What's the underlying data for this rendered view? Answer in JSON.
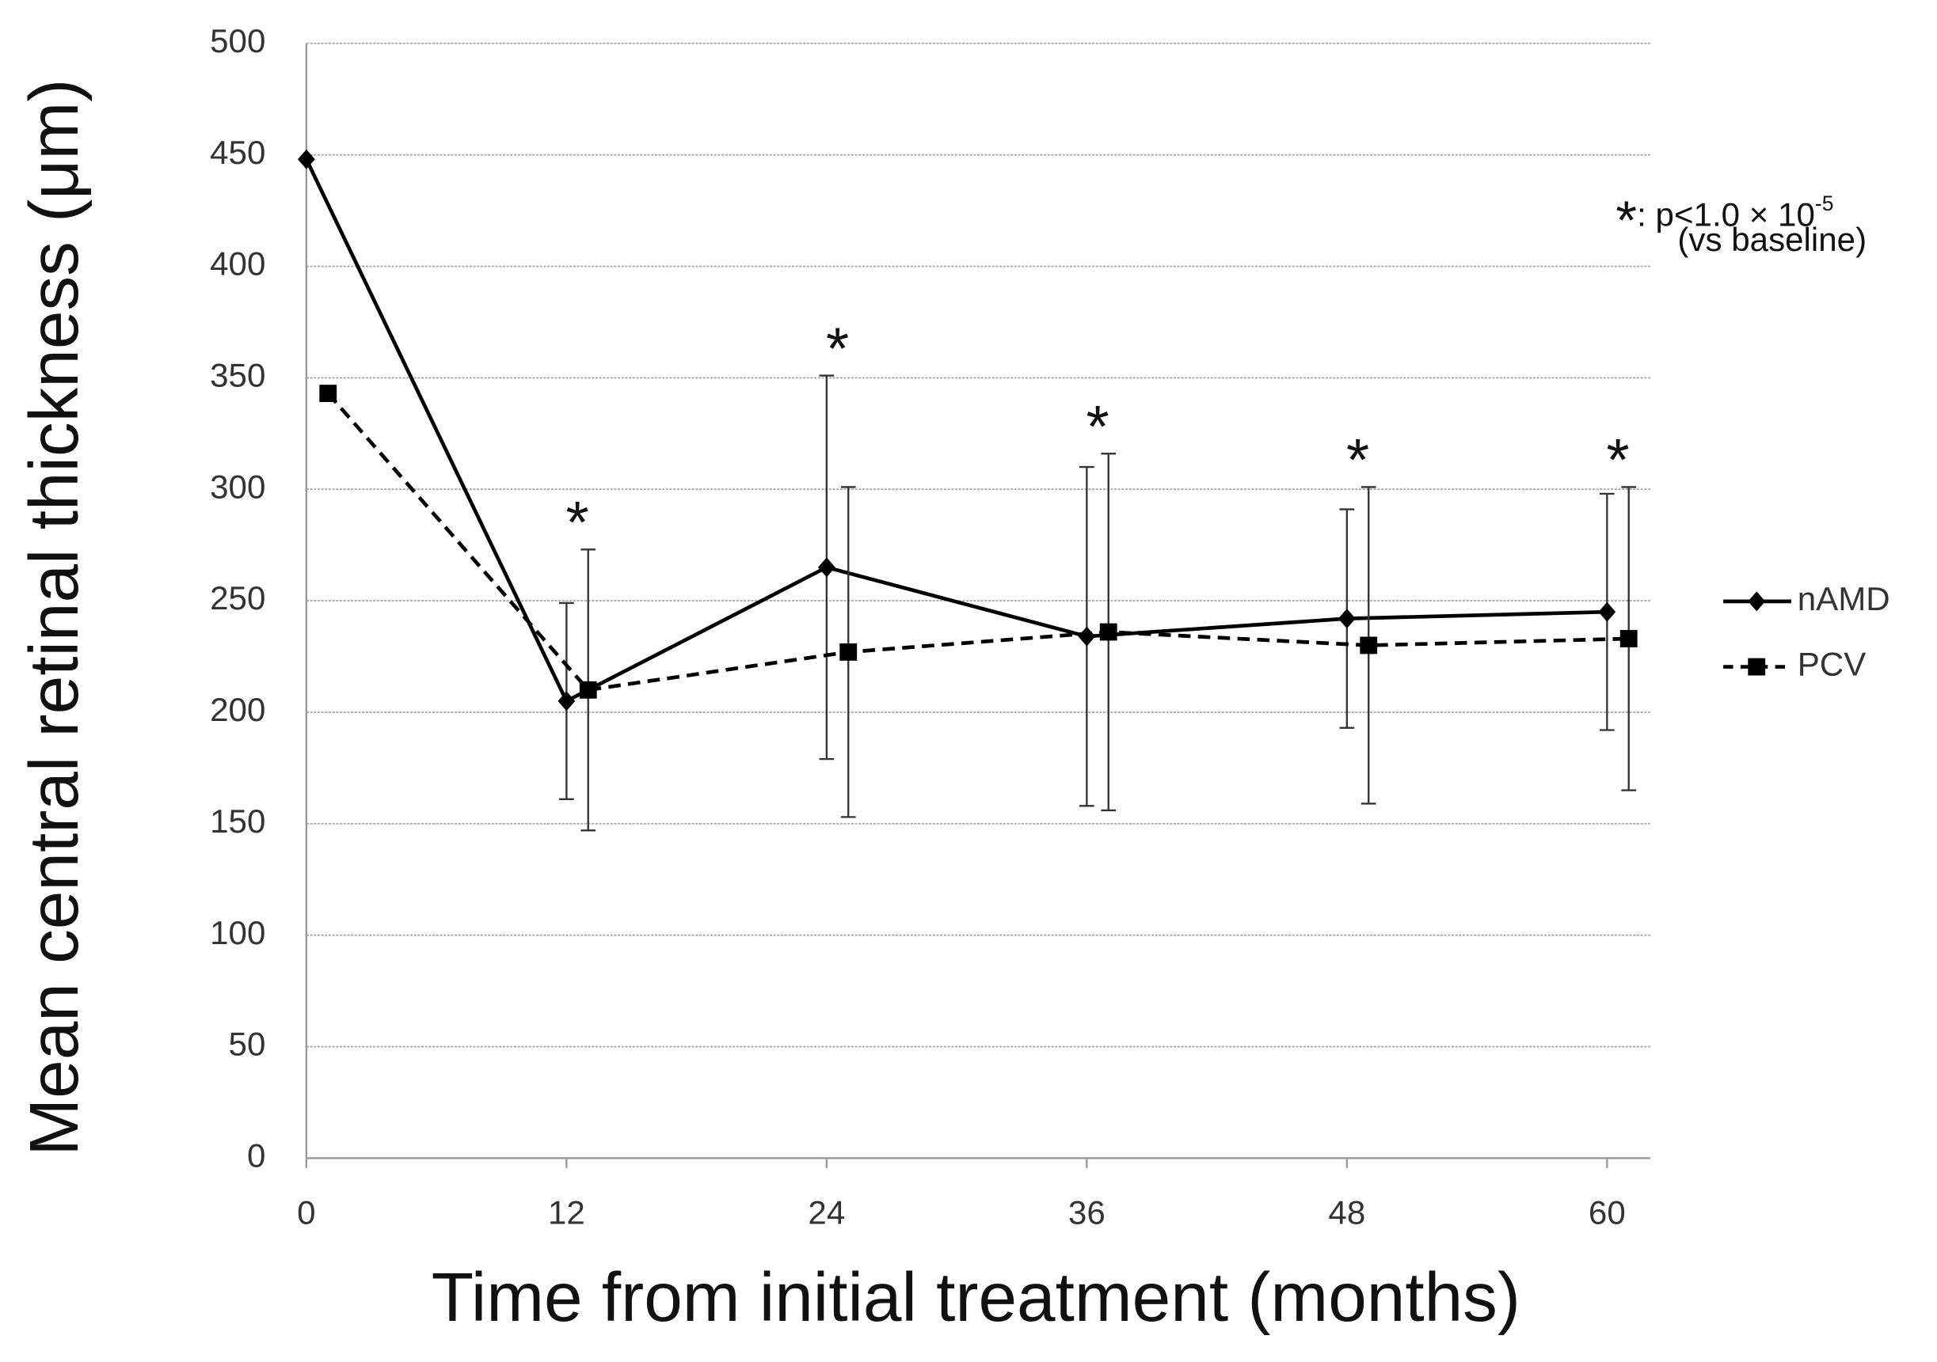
{
  "chart_data": {
    "type": "line",
    "x_label": "Time from initial treatment (months)",
    "y_label": "Mean central retinal thickness (μm)",
    "xlim": [
      0,
      62
    ],
    "xticks": [
      0,
      12,
      24,
      36,
      48,
      60
    ],
    "ylim": [
      0,
      500
    ],
    "yticks": [
      0,
      50,
      100,
      150,
      200,
      250,
      300,
      350,
      400,
      450,
      500
    ],
    "grid": true,
    "legend_position": "right",
    "series": [
      {
        "name": "nAMD",
        "color": "#000000",
        "line_style": "solid",
        "marker": "diamond",
        "x": [
          0,
          12,
          24,
          36,
          48,
          60
        ],
        "values": [
          448,
          205,
          265,
          234,
          242,
          245
        ],
        "errors": [
          null,
          44,
          86,
          76,
          49,
          53
        ]
      },
      {
        "name": "PCV",
        "color": "#000000",
        "line_style": "dashed",
        "marker": "square",
        "x": [
          1,
          13,
          25,
          37,
          49,
          61
        ],
        "values": [
          343,
          210,
          227,
          236,
          230,
          233
        ],
        "errors": [
          null,
          63,
          74,
          80,
          71,
          68
        ]
      }
    ],
    "significance_marks": [
      null,
      "*",
      "*",
      "*",
      "*",
      "*"
    ],
    "annotation": {
      "symbol": "*",
      "line1": ": p<1.0 × 10",
      "exponent": "-5",
      "line2": "(vs baseline)"
    }
  }
}
